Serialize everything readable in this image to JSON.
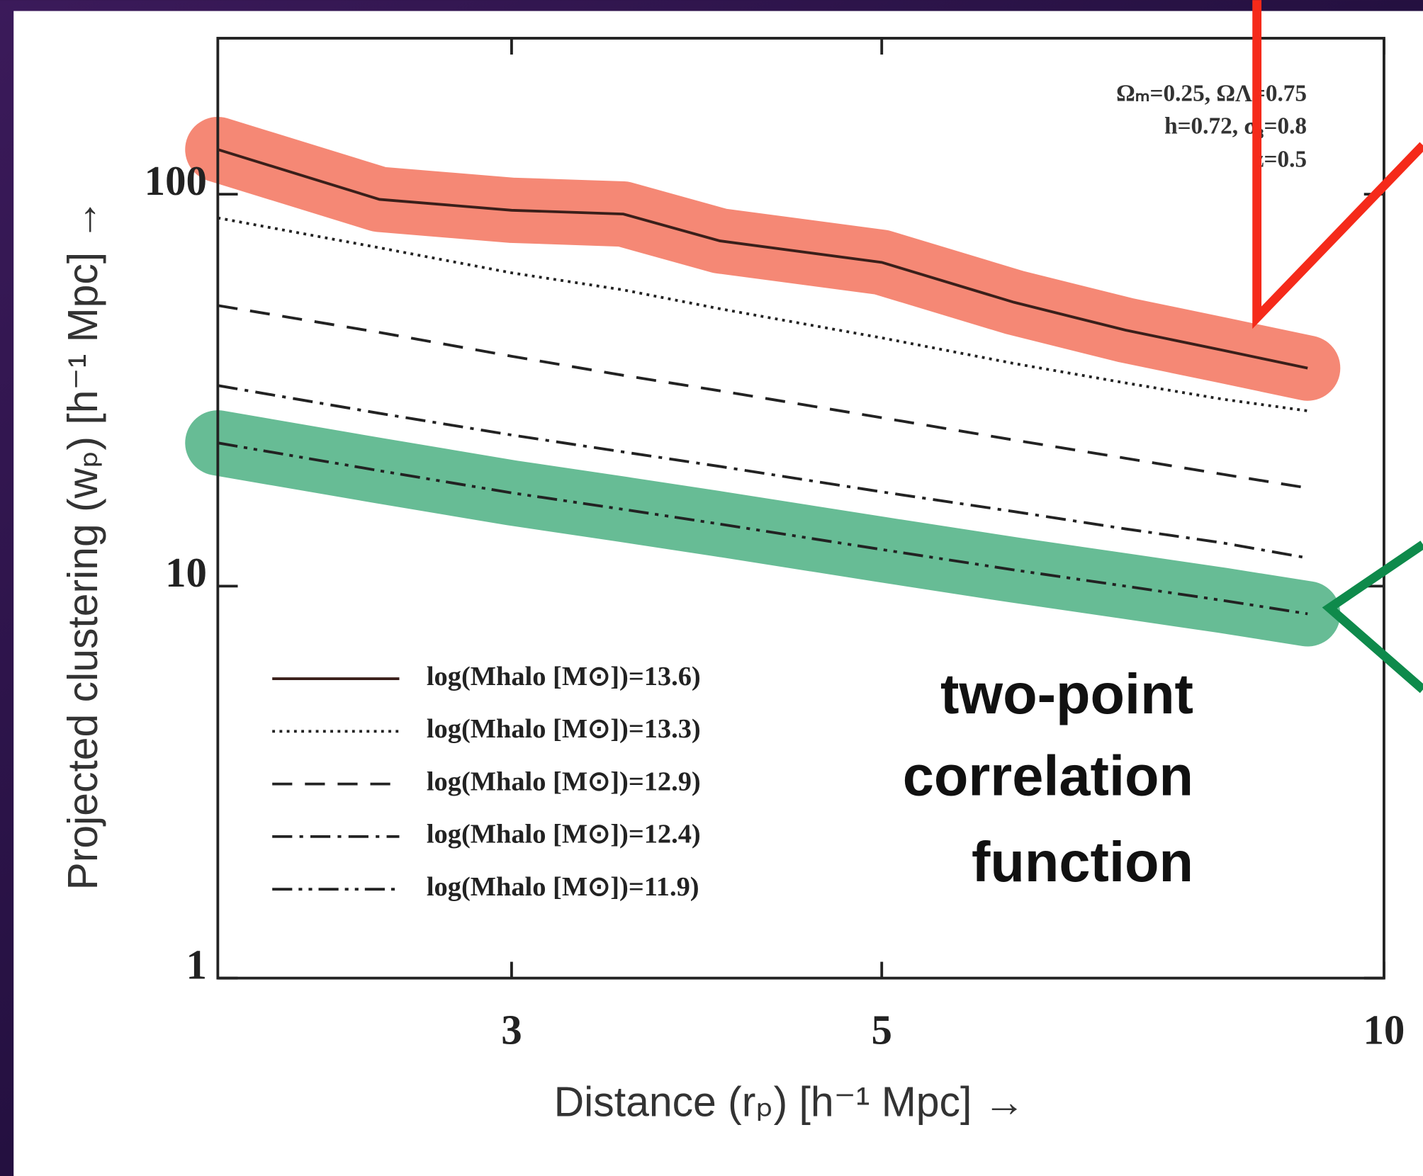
{
  "chart_data": {
    "type": "line",
    "y_label": "Projected clustering (wₚ) [h⁻¹ Mpc] →",
    "x_label": "Distance (rₚ) [h⁻¹ Mpc] →",
    "x": [
      2,
      2.5,
      3,
      3.5,
      4,
      5,
      6,
      7,
      8,
      9
    ],
    "xscale": "log",
    "yscale": "log",
    "xlim": [
      2,
      10
    ],
    "ylim": [
      1,
      250
    ],
    "xticks": [
      3,
      5,
      10
    ],
    "yticks": [
      1,
      10,
      100
    ],
    "params": [
      "Ωₘ=0.25, ΩΛ=0.75",
      "h=0.72, σ₈=0.8",
      "z=0.5"
    ],
    "callout": [
      "two-point",
      "correlation",
      "function"
    ],
    "series": [
      {
        "name": "log(Mhalo [M⊙])=13.6)",
        "color": "#3a1f1a",
        "linestyle": "solid",
        "highlight": "#f4826e",
        "values": [
          130,
          97,
          91,
          89,
          76,
          67,
          53,
          45,
          40,
          36
        ]
      },
      {
        "name": "log(Mhalo [M⊙])=13.3)",
        "color": "#222222",
        "linestyle": "dotted",
        "values": [
          87,
          73,
          63,
          57,
          51,
          43,
          37,
          33,
          30,
          28
        ]
      },
      {
        "name": "log(Mhalo [M⊙])=12.9)",
        "color": "#222222",
        "linestyle": "dashed",
        "values": [
          52,
          44.4,
          38.6,
          34.5,
          31.5,
          26.9,
          23.6,
          21.2,
          19.3,
          17.8
        ]
      },
      {
        "name": "log(Mhalo [M⊙])=12.4)",
        "color": "#222222",
        "linestyle": "dashdot",
        "values": [
          32.5,
          27.6,
          24.3,
          22,
          20.2,
          17.4,
          15.5,
          14,
          12.9,
          11.8
        ]
      },
      {
        "name": "log(Mhalo [M⊙])=11.9)",
        "color": "#222222",
        "linestyle": "dashdotdot",
        "highlight": "#5fb88f",
        "values": [
          23.2,
          19.7,
          17.3,
          15.7,
          14.4,
          12.4,
          11,
          10,
          9.2,
          8.5
        ]
      }
    ]
  }
}
